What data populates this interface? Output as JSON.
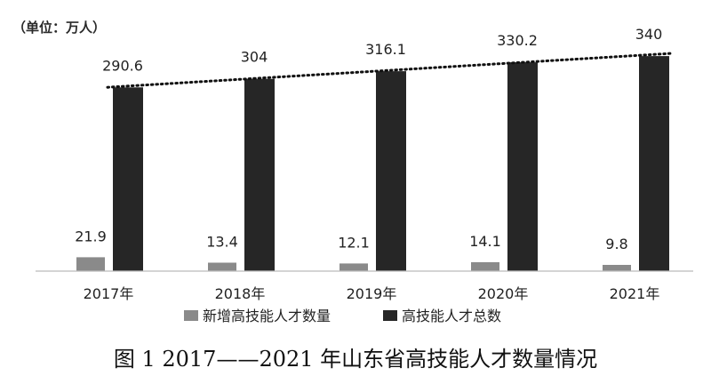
{
  "chart_data": {
    "type": "bar",
    "unit_label": "（单位：万人）",
    "categories": [
      "2017年",
      "2018年",
      "2019年",
      "2020年",
      "2021年"
    ],
    "series": [
      {
        "name": "新增高技能人才数量",
        "values": [
          21.9,
          13.4,
          12.1,
          14.1,
          9.8
        ],
        "labels": [
          "21.9",
          "13.4",
          "12.1",
          "14.1",
          "9.8"
        ],
        "color": "#8a8a8a"
      },
      {
        "name": "高技能人才总数",
        "values": [
          290.6,
          304,
          316.1,
          330.2,
          340
        ],
        "labels": [
          "290.6",
          "304",
          "316.1",
          "330.2",
          "340"
        ],
        "color": "#262626"
      }
    ],
    "trendline": {
      "series": "高技能人才总数",
      "style": "dotted",
      "color": "#111111"
    },
    "ylim": [
      0,
      350
    ],
    "grid": false,
    "legend": "bottom",
    "caption": "图 1 2017——2021 年山东省高技能人才数量情况"
  }
}
